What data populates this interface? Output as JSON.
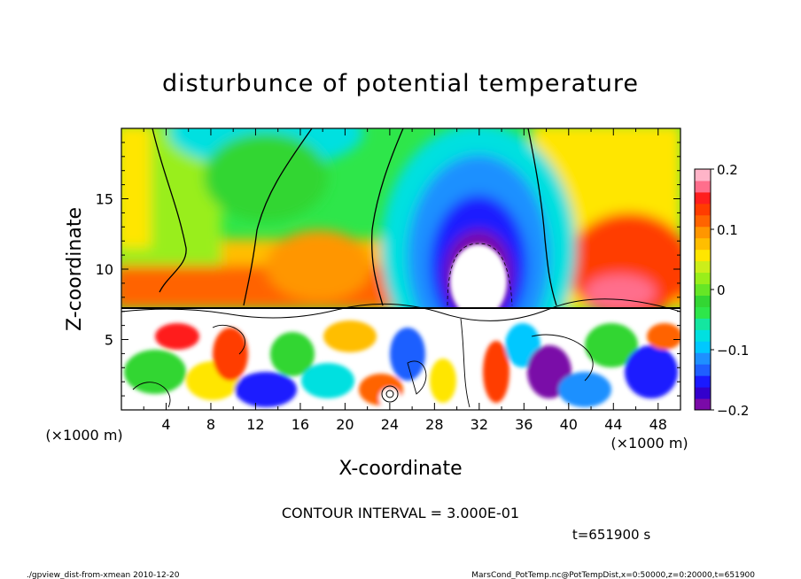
{
  "chart_data": {
    "type": "heatmap",
    "title": "disturbunce of potential temperature",
    "xlabel": "X-coordinate",
    "ylabel": "Z-coordinate",
    "x_unit": "(×1000 m)",
    "y_unit": "(×1000 m)",
    "x_range": [
      0,
      50
    ],
    "y_range": [
      0,
      20
    ],
    "x_ticks": [
      "4",
      "8",
      "12",
      "16",
      "20",
      "24",
      "28",
      "32",
      "36",
      "40",
      "44",
      "48"
    ],
    "y_ticks": [
      "5",
      "10",
      "15"
    ],
    "colorbar": {
      "range": [
        -0.2,
        0.2
      ],
      "tick_labels": [
        "0.2",
        "0.1",
        "0",
        "−0.1",
        "−0.2"
      ],
      "tick_values": [
        0.2,
        0.1,
        0,
        -0.1,
        -0.2
      ],
      "colors": [
        "#7a0aa8",
        "#3300cc",
        "#1a1aff",
        "#1f5fff",
        "#1e90ff",
        "#00c8ff",
        "#00e0e0",
        "#14e6a0",
        "#2ee64a",
        "#33d633",
        "#66e626",
        "#99ee1a",
        "#ccee1a",
        "#ffe600",
        "#ffbe00",
        "#ff9600",
        "#ff6400",
        "#ff3c00",
        "#ff1e1e",
        "#ff6e8c",
        "#ffb4c8"
      ]
    },
    "contour_interval": "CONTOUR INTERVAL = 3.000E-01",
    "time_label": "t=651900 s"
  },
  "footer": {
    "left": "./gpview_dist-from-xmean  2010-12-20",
    "right": "MarsCond_PotTemp.nc@PotTempDist,x=0:50000,z=0:20000,t=651900"
  }
}
